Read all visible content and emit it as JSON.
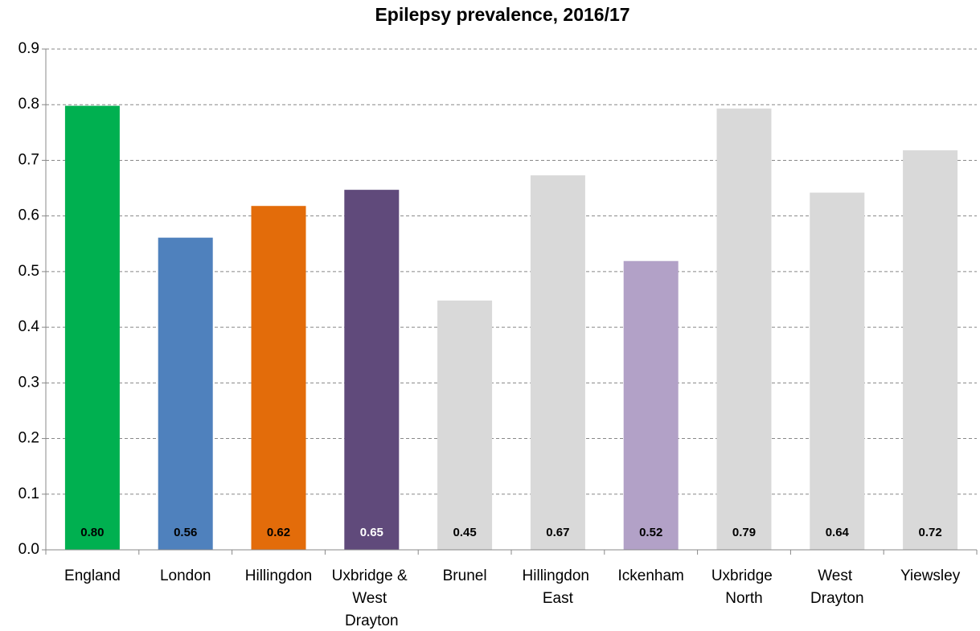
{
  "chart_data": {
    "type": "bar",
    "title": "Epilepsy prevalence, 2016/17",
    "categories": [
      "England",
      "London",
      "Hillingdon",
      "Uxbridge & West Drayton",
      "Brunel",
      "Hillingdon East",
      "Ickenham",
      "Uxbridge North",
      "West Drayton",
      "Yiewsley"
    ],
    "values": [
      0.798,
      0.561,
      0.618,
      0.647,
      0.448,
      0.673,
      0.519,
      0.793,
      0.642,
      0.718
    ],
    "value_labels": [
      "0.80",
      "0.56",
      "0.62",
      "0.65",
      "0.45",
      "0.67",
      "0.52",
      "0.79",
      "0.64",
      "0.72"
    ],
    "colors": [
      "#00b050",
      "#4f81bd",
      "#e36c0a",
      "#604a7b",
      "#d9d9d9",
      "#d9d9d9",
      "#b2a1c7",
      "#d9d9d9",
      "#d9d9d9",
      "#d9d9d9"
    ],
    "label_colors": [
      "#000000",
      "#000000",
      "#000000",
      "#ffffff",
      "#000000",
      "#000000",
      "#000000",
      "#000000",
      "#000000",
      "#000000"
    ],
    "ylim": [
      0,
      0.9
    ],
    "yticks": [
      {
        "value": 0,
        "label": "0.0"
      },
      0.1,
      0.2,
      0.3,
      0.4,
      0.5,
      0.6,
      0.7,
      0.8,
      0.9
    ],
    "grid": true
  }
}
